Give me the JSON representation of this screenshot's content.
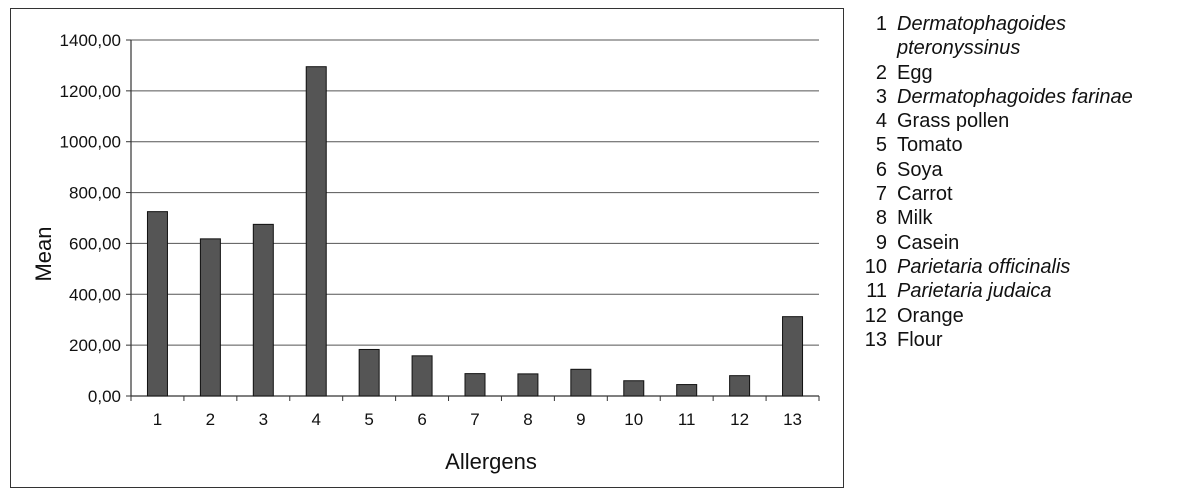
{
  "chart_data": {
    "type": "bar",
    "categories": [
      "1",
      "2",
      "3",
      "4",
      "5",
      "6",
      "7",
      "8",
      "9",
      "10",
      "11",
      "12",
      "13"
    ],
    "values": [
      725,
      618,
      675,
      1295,
      183,
      158,
      88,
      87,
      105,
      60,
      45,
      80,
      312
    ],
    "xlabel": "Allergens",
    "ylabel": "Mean",
    "ylim": [
      0,
      1400
    ],
    "yticks": [
      0,
      200,
      400,
      600,
      800,
      1000,
      1200,
      1400
    ],
    "ytick_labels": [
      "0,00",
      "200,00",
      "400,00",
      "600,00",
      "800,00",
      "1000,00",
      "1200,00",
      "1400,00"
    ],
    "grid": true,
    "bar_color": "#555555"
  },
  "legend": [
    {
      "num": "1",
      "label": "Dermatophagoides pteronyssinus",
      "italic": true
    },
    {
      "num": "2",
      "label": "Egg",
      "italic": false
    },
    {
      "num": "3",
      "label": "Dermatophagoides farinae",
      "italic": true
    },
    {
      "num": "4",
      "label": "Grass pollen",
      "italic": false
    },
    {
      "num": "5",
      "label": "Tomato",
      "italic": false
    },
    {
      "num": "6",
      "label": "Soya",
      "italic": false
    },
    {
      "num": "7",
      "label": "Carrot",
      "italic": false
    },
    {
      "num": "8",
      "label": "Milk",
      "italic": false
    },
    {
      "num": "9",
      "label": "Casein",
      "italic": false
    },
    {
      "num": "10",
      "label": "Parietaria officinalis",
      "italic": true
    },
    {
      "num": "11",
      "label": "Parietaria judaica",
      "italic": true
    },
    {
      "num": "12",
      "label": "Orange",
      "italic": false
    },
    {
      "num": "13",
      "label": "Flour",
      "italic": false
    }
  ]
}
